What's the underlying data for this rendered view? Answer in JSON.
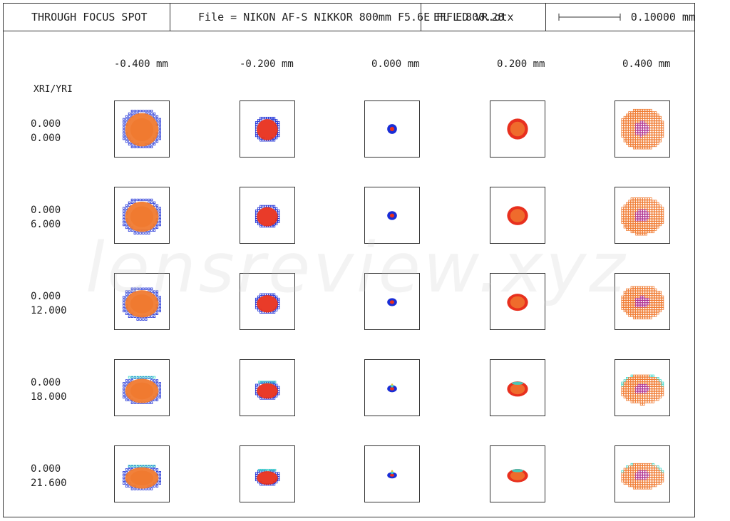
{
  "header": {
    "title": "THROUGH FOCUS SPOT",
    "file_text": "File = NIKON AF-S NIKKOR 800mm F5.6E FL ED VR.otx",
    "effl_text": "EFFL 800.28",
    "scale_value": "0.10000 mm"
  },
  "axis": {
    "row_axis_label": "XRI/YRI",
    "columns": [
      "-0.400  mm",
      "-0.200  mm",
      "0.000  mm",
      "0.200  mm",
      "0.400  mm"
    ],
    "rows": [
      {
        "x": "0.000",
        "y": "0.000"
      },
      {
        "x": "0.000",
        "y": "6.000"
      },
      {
        "x": "0.000",
        "y": "12.000"
      },
      {
        "x": "0.000",
        "y": "18.000"
      },
      {
        "x": "0.000",
        "y": "21.600"
      }
    ]
  },
  "watermark": "lensreview.xyz",
  "colors": {
    "frame": "#333333",
    "red": "#e8301e",
    "orange": "#f07a30",
    "blue": "#1a2dd6",
    "cyan": "#36d6c8",
    "magenta": "#b03090"
  }
}
